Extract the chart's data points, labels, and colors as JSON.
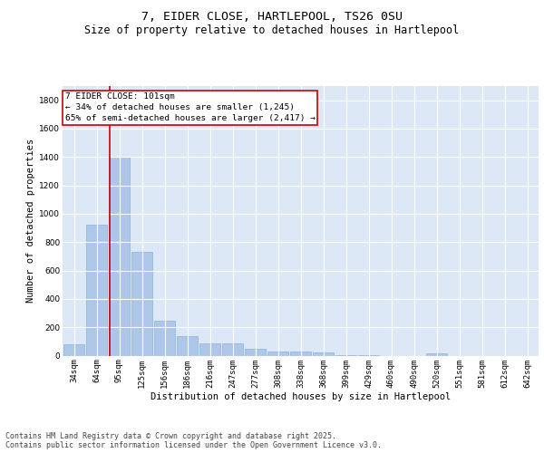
{
  "title_line1": "7, EIDER CLOSE, HARTLEPOOL, TS26 0SU",
  "title_line2": "Size of property relative to detached houses in Hartlepool",
  "xlabel": "Distribution of detached houses by size in Hartlepool",
  "ylabel": "Number of detached properties",
  "categories": [
    "34sqm",
    "64sqm",
    "95sqm",
    "125sqm",
    "156sqm",
    "186sqm",
    "216sqm",
    "247sqm",
    "277sqm",
    "308sqm",
    "338sqm",
    "368sqm",
    "399sqm",
    "429sqm",
    "460sqm",
    "490sqm",
    "520sqm",
    "551sqm",
    "581sqm",
    "612sqm",
    "642sqm"
  ],
  "values": [
    80,
    920,
    1400,
    730,
    245,
    140,
    85,
    85,
    50,
    30,
    30,
    20,
    5,
    5,
    0,
    0,
    15,
    0,
    0,
    0,
    0
  ],
  "bar_color": "#aec6e8",
  "bar_edgecolor": "#8ab4d8",
  "vline_color": "#cc0000",
  "vline_pos": 1.575,
  "annotation_text": "7 EIDER CLOSE: 101sqm\n← 34% of detached houses are smaller (1,245)\n65% of semi-detached houses are larger (2,417) →",
  "annotation_box_facecolor": "#ffffff",
  "annotation_box_edgecolor": "#cc0000",
  "ylim": [
    0,
    1900
  ],
  "yticks": [
    0,
    200,
    400,
    600,
    800,
    1000,
    1200,
    1400,
    1600,
    1800
  ],
  "bg_color": "#dce8f5",
  "fig_bg_color": "#ffffff",
  "grid_color": "#ffffff",
  "title_fontsize": 9.5,
  "subtitle_fontsize": 8.5,
  "axis_label_fontsize": 7.5,
  "tick_fontsize": 6.5,
  "annotation_fontsize": 6.8,
  "footer_fontsize": 6.0
}
